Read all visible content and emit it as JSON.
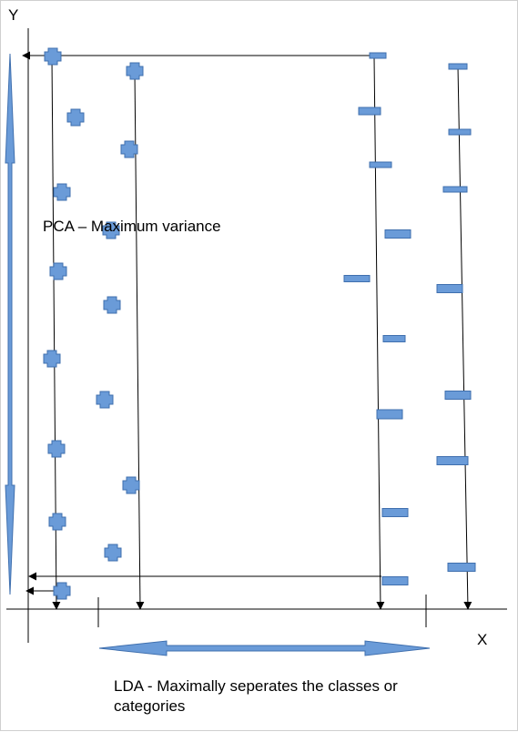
{
  "labels": {
    "y_axis": "Y",
    "x_axis": "X",
    "pca": "PCA – Maximum variance",
    "lda_line1": "LDA - Maximally seperates the classes or",
    "lda_line2": "categories"
  },
  "colors": {
    "fill": "#6a9bd8",
    "stroke": "#3f6fae",
    "line": "#000000"
  },
  "shapes": {
    "class_a": "plus-shape",
    "class_b": "bar-shape"
  }
}
